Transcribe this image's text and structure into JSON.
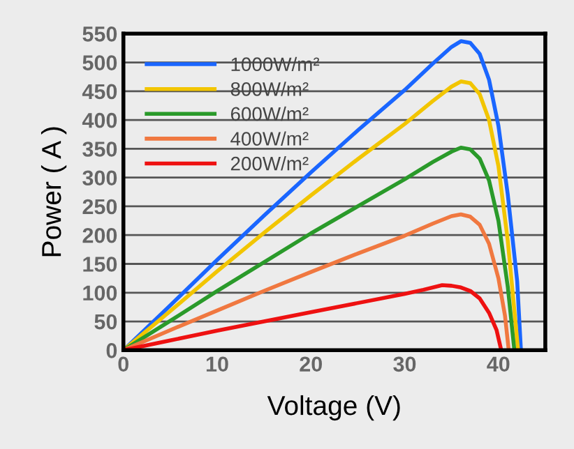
{
  "chart_data": {
    "type": "line",
    "xlabel": "Voltage (V)",
    "ylabel": "Power ( A )",
    "xlim": [
      0,
      45
    ],
    "xticks": [
      0,
      10,
      20,
      30,
      40
    ],
    "ylim": [
      0,
      550
    ],
    "yticks": [
      0,
      50,
      100,
      150,
      200,
      250,
      300,
      350,
      400,
      450,
      500,
      550
    ],
    "grid": "y",
    "legend": "top left",
    "line_style": "solid",
    "series": [
      {
        "name": "1000W/m²",
        "color": "#1a66ff",
        "x": [
          0,
          5,
          10,
          15,
          20,
          25,
          30,
          33,
          35,
          36,
          37,
          38,
          39,
          40,
          41,
          42,
          42.4
        ],
        "values": [
          0,
          78,
          157,
          234,
          309,
          382,
          452,
          498,
          527,
          537,
          534,
          515,
          470,
          390,
          270,
          120,
          0
        ]
      },
      {
        "name": "800W/m²",
        "color": "#f2c500",
        "x": [
          0,
          5,
          10,
          15,
          20,
          25,
          30,
          33,
          35,
          36,
          37,
          38,
          39,
          40,
          41,
          42.1
        ],
        "values": [
          0,
          68,
          137,
          204,
          269,
          332,
          393,
          433,
          458,
          467,
          464,
          445,
          400,
          320,
          190,
          0
        ]
      },
      {
        "name": "600W/m²",
        "color": "#2a9a2a",
        "x": [
          0,
          5,
          10,
          15,
          20,
          25,
          30,
          33,
          35,
          36,
          37,
          38,
          39,
          40,
          41,
          41.7
        ],
        "values": [
          0,
          51,
          103,
          153,
          203,
          250,
          297,
          327,
          345,
          352,
          349,
          333,
          295,
          225,
          110,
          0
        ]
      },
      {
        "name": "400W/m²",
        "color": "#f07840",
        "x": [
          0,
          5,
          10,
          15,
          20,
          25,
          30,
          33,
          35,
          36,
          37,
          38,
          39,
          40,
          40.7,
          41.1
        ],
        "values": [
          0,
          35,
          69,
          103,
          136,
          168,
          199,
          220,
          233,
          236,
          232,
          218,
          185,
          125,
          60,
          0
        ]
      },
      {
        "name": "200W/m²",
        "color": "#ee1111",
        "x": [
          0,
          5,
          10,
          15,
          20,
          25,
          30,
          32,
          34,
          35,
          36,
          37,
          38,
          39,
          39.8,
          40.3
        ],
        "values": [
          0,
          17,
          34,
          50,
          66,
          82,
          98,
          105,
          113,
          112,
          109,
          103,
          90,
          65,
          35,
          0
        ]
      }
    ]
  }
}
